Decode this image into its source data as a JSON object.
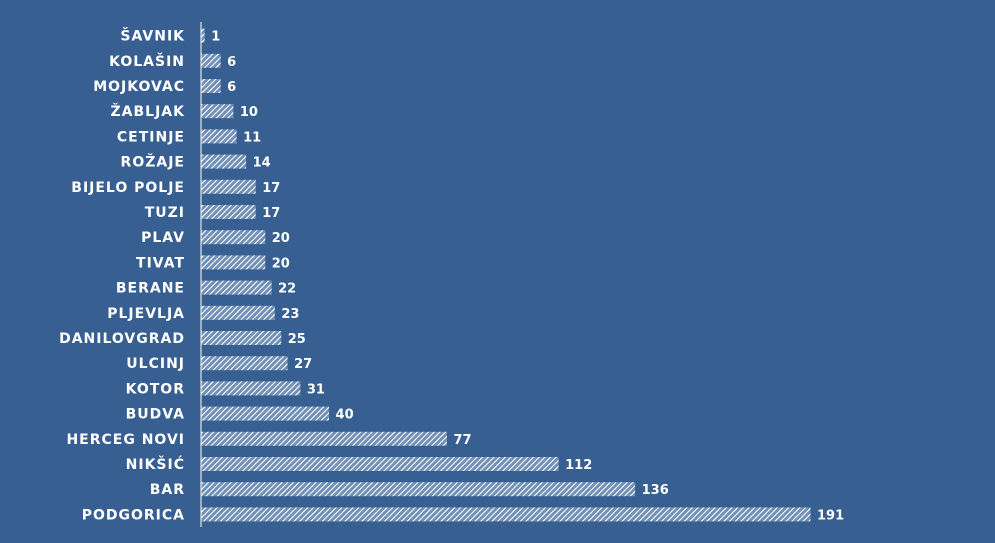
{
  "colors": {
    "background": "#375f92",
    "bar_stripe": "#ffffff",
    "axis": "#ffffff",
    "text": "#ffffff"
  },
  "chart_data": {
    "type": "bar",
    "orientation": "horizontal",
    "title": "",
    "xlabel": "",
    "ylabel": "",
    "grid": false,
    "legend": "none",
    "bar_fill": "diagonal-hatch",
    "xlim": [
      0,
      191
    ],
    "categories": [
      "ŠAVNIK",
      "KOLAŠIN",
      "MOJKOVAC",
      "ŽABLJAK",
      "CETINJE",
      "ROŽAJE",
      "BIJELO POLJE",
      "TUZI",
      "PLAV",
      "TIVAT",
      "BERANE",
      "PLJEVLJA",
      "DANILOVGRAD",
      "ULCINJ",
      "KOTOR",
      "BUDVA",
      "HERCEG NOVI",
      "NIKŠIĆ",
      "BAR",
      "PODGORICA"
    ],
    "values": [
      1,
      6,
      6,
      10,
      11,
      14,
      17,
      17,
      20,
      20,
      22,
      23,
      25,
      27,
      31,
      40,
      77,
      112,
      136,
      191
    ]
  }
}
